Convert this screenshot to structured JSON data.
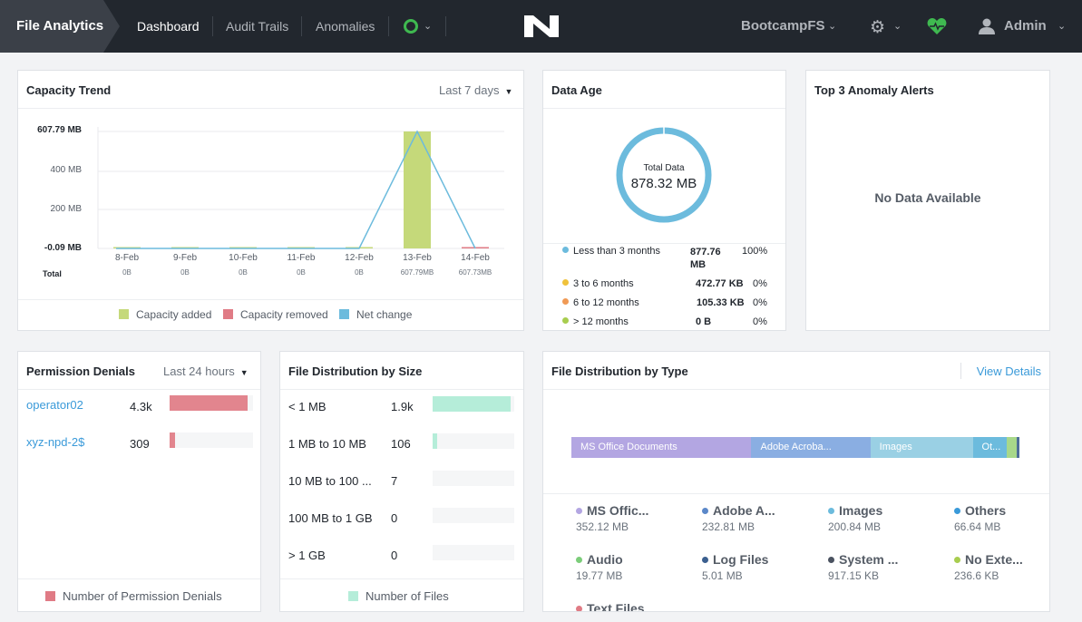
{
  "app": {
    "title": "File Analytics"
  },
  "nav": {
    "items": [
      "Dashboard",
      "Audit Trails",
      "Anomalies"
    ],
    "active": "Dashboard"
  },
  "header": {
    "file_server": "BootcampFS",
    "user": "Admin"
  },
  "capacity": {
    "title": "Capacity Trend",
    "range": "Last 7 days",
    "total_label": "Total",
    "legend": [
      "Capacity added",
      "Capacity removed",
      "Net change"
    ]
  },
  "chart_data": {
    "type": "bar",
    "title": "Capacity Trend",
    "categories": [
      "8-Feb",
      "9-Feb",
      "10-Feb",
      "11-Feb",
      "12-Feb",
      "13-Feb",
      "14-Feb"
    ],
    "totals": [
      "0B",
      "0B",
      "0B",
      "0B",
      "0B",
      "607.79MB",
      "607.73MB"
    ],
    "y_ticks": [
      "607.79 MB",
      "400 MB",
      "200 MB",
      "-0.09 MB"
    ],
    "ylim": [
      -0.09,
      607.79
    ],
    "grid": true,
    "legend_position": "bottom",
    "series": [
      {
        "name": "Capacity added",
        "kind": "bar",
        "color": "#c5d97a",
        "values": [
          0,
          0,
          0,
          0,
          0,
          607.79,
          0
        ]
      },
      {
        "name": "Capacity removed",
        "kind": "bar",
        "color": "#e07b85",
        "values": [
          0,
          0,
          0,
          0,
          0,
          0,
          -0.06
        ]
      },
      {
        "name": "Net change",
        "kind": "line",
        "color": "#6cbbdd",
        "values": [
          0,
          0,
          0,
          0,
          0,
          607.79,
          -0.06
        ]
      }
    ]
  },
  "data_age": {
    "title": "Data Age",
    "total_label": "Total Data",
    "total_value": "878.32 MB",
    "rows": [
      {
        "label": "Less than 3 months",
        "size": "877.76 MB",
        "pct": "100%",
        "color": "#6cbbdd"
      },
      {
        "label": "3 to 6 months",
        "size": "472.77 KB",
        "pct": "0%",
        "color": "#f0c23b"
      },
      {
        "label": "6 to 12 months",
        "size": "105.33 KB",
        "pct": "0%",
        "color": "#f09a55"
      },
      {
        "label": "> 12 months",
        "size": "0 B",
        "pct": "0%",
        "color": "#a8cd4f"
      }
    ]
  },
  "anomaly": {
    "title": "Top 3 Anomaly Alerts",
    "empty": "No Data Available"
  },
  "permission": {
    "title": "Permission Denials",
    "range": "Last 24 hours",
    "legend": "Number of Permission Denials",
    "rows": [
      {
        "name": "operator02",
        "count": "4.3k",
        "fraction": 0.93
      },
      {
        "name": "xyz-npd-2$",
        "count": "309",
        "fraction": 0.07
      }
    ]
  },
  "size_dist": {
    "title": "File Distribution by Size",
    "legend": "Number of Files",
    "rows": [
      {
        "name": "< 1 MB",
        "count": "1.9k",
        "fraction": 0.95
      },
      {
        "name": "1 MB to 10 MB",
        "count": "106",
        "fraction": 0.06
      },
      {
        "name": "10 MB to 100 ...",
        "count": "7",
        "fraction": 0
      },
      {
        "name": "100 MB to 1 GB",
        "count": "0",
        "fraction": 0
      },
      {
        "name": "> 1 GB",
        "count": "0",
        "fraction": 0
      }
    ]
  },
  "type_dist": {
    "title": "File Distribution by Type",
    "view_details": "View Details",
    "bar": [
      {
        "label": "MS Office Documents",
        "fraction": 0.401,
        "color": "#b3a6e2"
      },
      {
        "label": "Adobe Acroba...",
        "fraction": 0.265,
        "color": "#8aaee2"
      },
      {
        "label": "Images",
        "fraction": 0.228,
        "color": "#9ad0e4"
      },
      {
        "label": "Ot...",
        "fraction": 0.076,
        "color": "#6cbbdd"
      },
      {
        "label": "",
        "fraction": 0.022,
        "color": "#a8d88a"
      },
      {
        "label": "",
        "fraction": 0.006,
        "color": "#4f6f99"
      }
    ],
    "items": [
      {
        "name": "MS Offic...",
        "size": "352.12 MB",
        "color": "#b3a6e2"
      },
      {
        "name": "Adobe A...",
        "size": "232.81 MB",
        "color": "#5b88c9"
      },
      {
        "name": "Images",
        "size": "200.84 MB",
        "color": "#6cbbdd"
      },
      {
        "name": "Others",
        "size": "66.64 MB",
        "color": "#3a9ad9"
      },
      {
        "name": "Audio",
        "size": "19.77 MB",
        "color": "#7ccd7a"
      },
      {
        "name": "Log Files",
        "size": "5.01 MB",
        "color": "#3b5f8f"
      },
      {
        "name": "System ...",
        "size": "917.15 KB",
        "color": "#4a5260"
      },
      {
        "name": "No Exte...",
        "size": "236.6 KB",
        "color": "#a8cd4f"
      },
      {
        "name": "Text Files",
        "size": "",
        "color": "#e07b85"
      }
    ]
  }
}
